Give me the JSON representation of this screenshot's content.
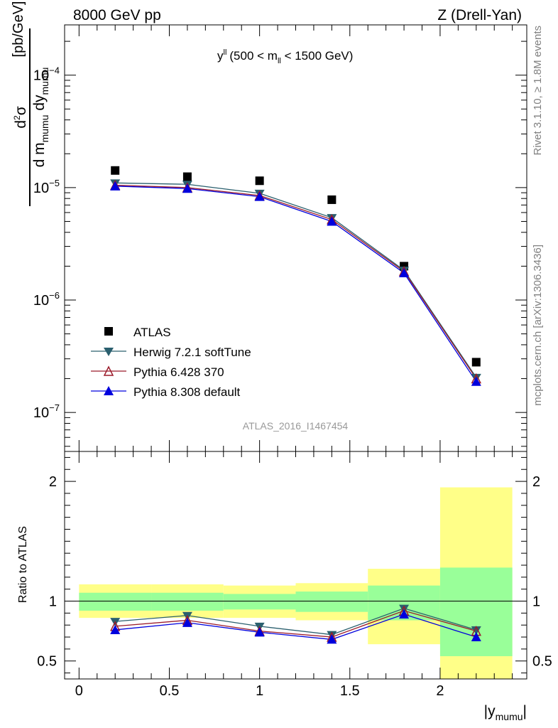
{
  "header": {
    "left": "8000 GeV pp",
    "right": "Z (Drell-Yan)"
  },
  "side": {
    "rivet": "Rivet 3.1.10, ≥ 1.8M events",
    "mcplots": "mcplots.cern.ch [arXiv:1306.3436]"
  },
  "chart_data": [
    {
      "type": "scatter",
      "title": "y",
      "title_sup": "ll",
      "title_range_a": "(500 < m",
      "title_range_sub": "ll",
      "title_range_b": " < 1500 GeV)",
      "analysis_id": "ATLAS_2016_I1467454",
      "ylabel_frac_num_a": "d",
      "ylabel_frac_num_sup": "2",
      "ylabel_frac_num_b": "σ",
      "ylabel_frac_den_a": "d m",
      "ylabel_frac_den_sub1": "mumu",
      "ylabel_frac_den_b": " dy",
      "ylabel_frac_den_sub2": "mumu",
      "ylabel_unit": "[pb/GeV]",
      "yscale": "log",
      "xlim": [
        -0.08,
        2.48
      ],
      "ylim": [
        4.5e-08,
        0.00028
      ],
      "y_ticks": [
        {
          "value": 0.0001,
          "base": "10",
          "exp": "−4"
        },
        {
          "value": 1e-05,
          "base": "10",
          "exp": "−5"
        },
        {
          "value": 1e-06,
          "base": "10",
          "exp": "−6"
        },
        {
          "value": 1e-07,
          "base": "10",
          "exp": "−7"
        }
      ],
      "legend_position": "lower-left",
      "x": [
        0.2,
        0.6,
        1.0,
        1.4,
        1.8,
        2.2
      ],
      "series": [
        {
          "name": "ATLAS",
          "color": "#000000",
          "marker": "square",
          "values": [
            1.42e-05,
            1.25e-05,
            1.15e-05,
            7.8e-06,
            2e-06,
            2.8e-07
          ]
        },
        {
          "name": "Herwig 7.2.1 softTune",
          "color": "#2a5f6e",
          "marker": "triangle-down",
          "values": [
            1.1e-05,
            1.07e-05,
            8.9e-06,
            5.4e-06,
            1.84e-06,
            2.05e-07
          ]
        },
        {
          "name": "Pythia 6.428 370",
          "color": "#9b1b2a",
          "marker": "triangle-up-open",
          "values": [
            1.05e-05,
            1e-05,
            8.5e-06,
            5.2e-06,
            1.8e-06,
            2e-07
          ]
        },
        {
          "name": "Pythia 8.308 default",
          "color": "#0000dd",
          "marker": "triangle-up",
          "values": [
            1.03e-05,
            9.8e-06,
            8.3e-06,
            5e-06,
            1.74e-06,
            1.88e-07
          ]
        }
      ]
    },
    {
      "type": "scatter",
      "ylabel": "Ratio to ATLAS",
      "xlabel_a": "|y",
      "xlabel_sub": "mumu",
      "xlabel_b": "|",
      "xlim": [
        -0.08,
        2.48
      ],
      "ylim": [
        0.35,
        2.25
      ],
      "x_ticks": [
        {
          "value": 0,
          "label": "0"
        },
        {
          "value": 0.5,
          "label": "0.5"
        },
        {
          "value": 1,
          "label": "1"
        },
        {
          "value": 1.5,
          "label": "1.5"
        },
        {
          "value": 2,
          "label": "2"
        }
      ],
      "y_ticks": [
        {
          "value": 0.5,
          "label": "0.5"
        },
        {
          "value": 1,
          "label": "1"
        },
        {
          "value": 2,
          "label": "2"
        }
      ],
      "x": [
        0.2,
        0.6,
        1.0,
        1.4,
        1.8,
        2.2
      ],
      "bands": {
        "edges": [
          0.0,
          0.4,
          0.8,
          1.2,
          1.6,
          2.0,
          2.4
        ],
        "inner_color": "#99ff99",
        "outer_color": "#ffff88",
        "inner": [
          [
            0.92,
            1.07
          ],
          [
            0.92,
            1.07
          ],
          [
            0.93,
            1.06
          ],
          [
            0.91,
            1.08
          ],
          [
            0.84,
            1.13
          ],
          [
            0.54,
            1.28
          ]
        ],
        "outer": [
          [
            0.86,
            1.14
          ],
          [
            0.86,
            1.14
          ],
          [
            0.86,
            1.13
          ],
          [
            0.84,
            1.15
          ],
          [
            0.64,
            1.27
          ],
          [
            0.33,
            1.95
          ]
        ]
      },
      "series": [
        {
          "name": "Herwig 7.2.1 softTune",
          "color": "#2a5f6e",
          "marker": "triangle-down",
          "values": [
            0.83,
            0.88,
            0.79,
            0.72,
            0.94,
            0.76
          ]
        },
        {
          "name": "Pythia 6.428 370",
          "color": "#9b1b2a",
          "marker": "triangle-up-open",
          "values": [
            0.79,
            0.84,
            0.75,
            0.7,
            0.92,
            0.75
          ]
        },
        {
          "name": "Pythia 8.308 default",
          "color": "#0000dd",
          "marker": "triangle-up",
          "values": [
            0.76,
            0.82,
            0.74,
            0.68,
            0.89,
            0.7
          ]
        }
      ]
    }
  ]
}
